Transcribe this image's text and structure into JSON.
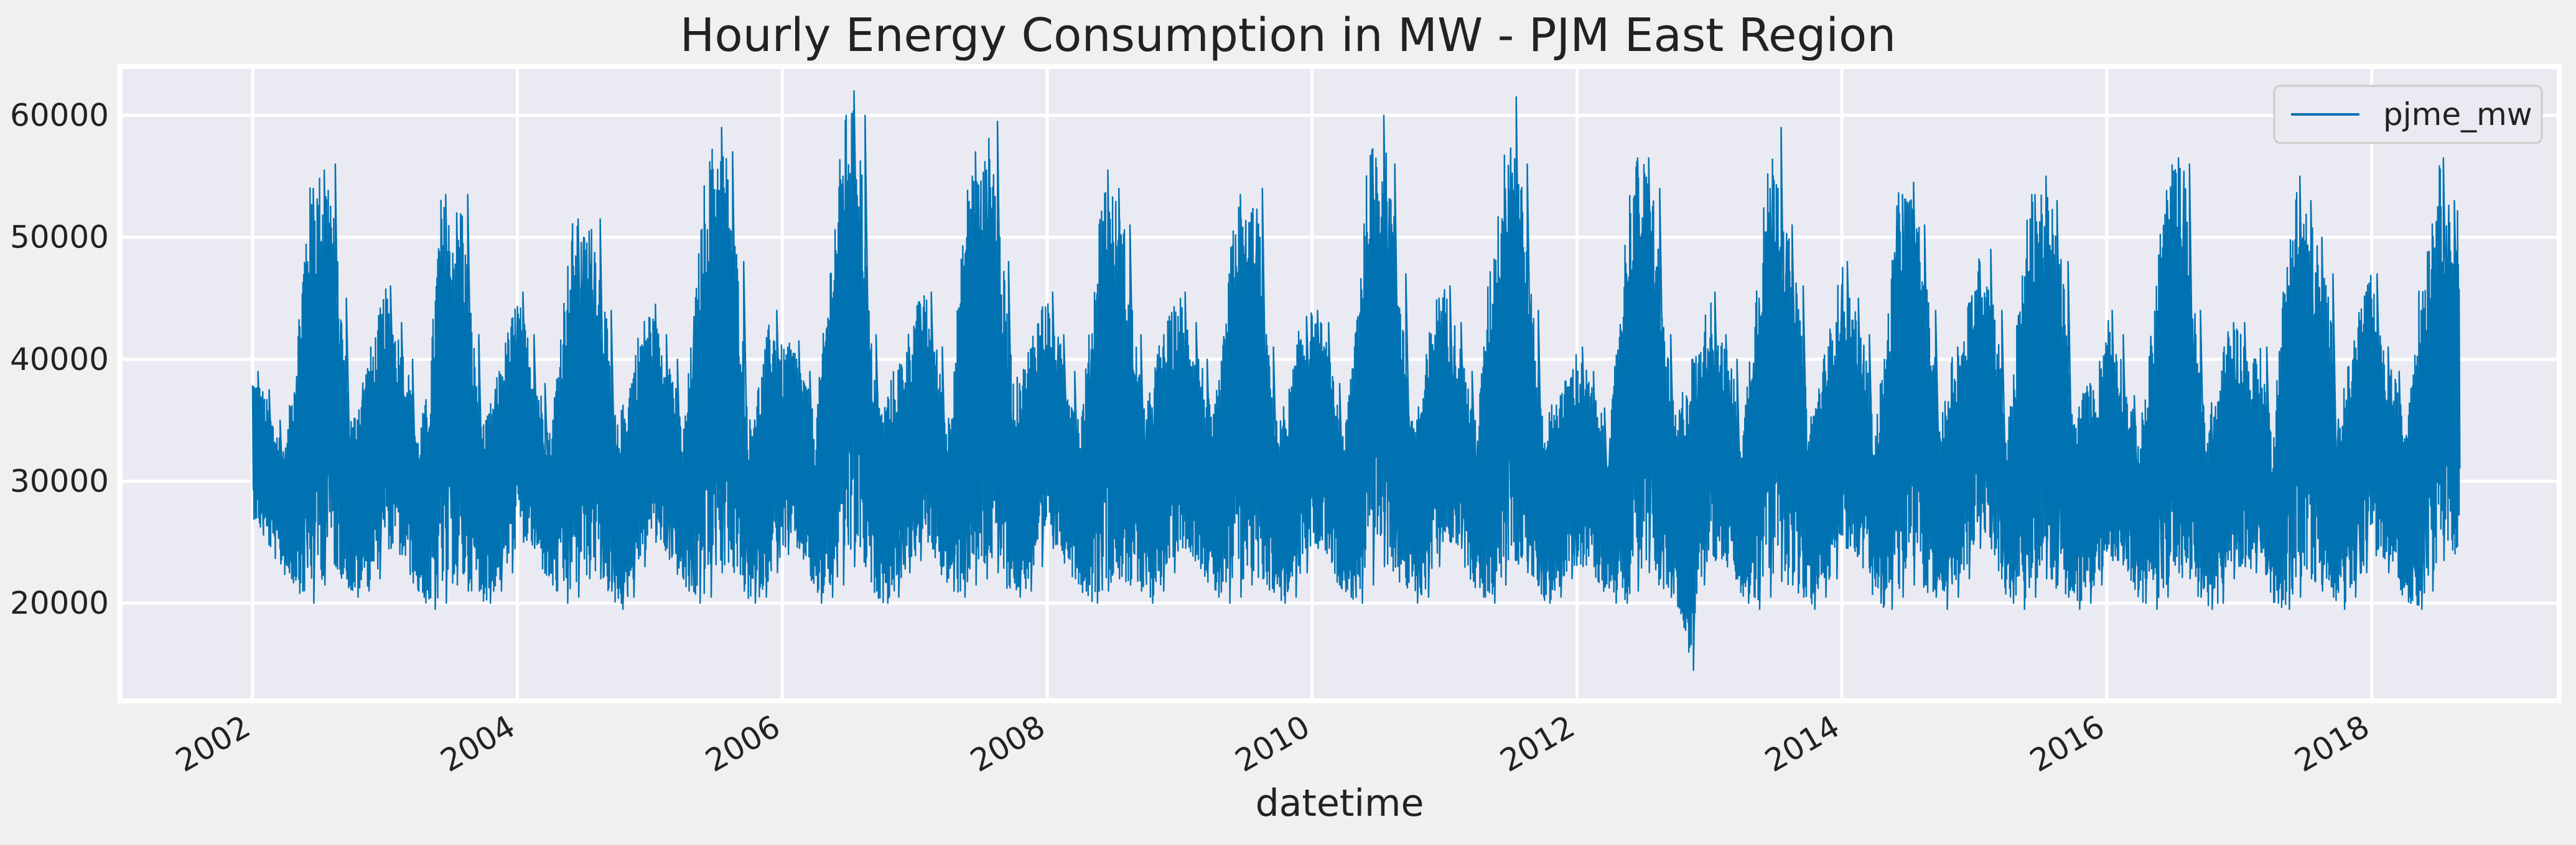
{
  "chart_data": {
    "type": "line",
    "title": "Hourly Energy Consumption in MW - PJM East Region",
    "xlabel": "datetime",
    "ylabel": "",
    "xlim": [
      "2001-01-01",
      "2019-06-01"
    ],
    "ylim": [
      12000,
      64000
    ],
    "x_ticks": [
      "2002",
      "2004",
      "2006",
      "2008",
      "2010",
      "2012",
      "2014",
      "2016",
      "2018"
    ],
    "y_ticks": [
      20000,
      30000,
      40000,
      50000,
      60000
    ],
    "grid": true,
    "legend_position": "top-right",
    "series_color": "#0072b2",
    "background_color": "#f0f0f0",
    "plot_background_color": "#eaeaf2",
    "series": [
      {
        "name": "pjme_mw",
        "x": [
          "2002-01",
          "2002-02",
          "2002-03",
          "2002-04",
          "2002-05",
          "2002-06",
          "2002-07",
          "2002-08",
          "2002-09",
          "2002-10",
          "2002-11",
          "2002-12",
          "2003-01",
          "2003-02",
          "2003-03",
          "2003-04",
          "2003-05",
          "2003-06",
          "2003-07",
          "2003-08",
          "2003-09",
          "2003-10",
          "2003-11",
          "2003-12",
          "2004-01",
          "2004-02",
          "2004-03",
          "2004-04",
          "2004-05",
          "2004-06",
          "2004-07",
          "2004-08",
          "2004-09",
          "2004-10",
          "2004-11",
          "2004-12",
          "2005-01",
          "2005-02",
          "2005-03",
          "2005-04",
          "2005-05",
          "2005-06",
          "2005-07",
          "2005-08",
          "2005-09",
          "2005-10",
          "2005-11",
          "2005-12",
          "2006-01",
          "2006-02",
          "2006-03",
          "2006-04",
          "2006-05",
          "2006-06",
          "2006-07",
          "2006-08",
          "2006-09",
          "2006-10",
          "2006-11",
          "2006-12",
          "2007-01",
          "2007-02",
          "2007-03",
          "2007-04",
          "2007-05",
          "2007-06",
          "2007-07",
          "2007-08",
          "2007-09",
          "2007-10",
          "2007-11",
          "2007-12",
          "2008-01",
          "2008-02",
          "2008-03",
          "2008-04",
          "2008-05",
          "2008-06",
          "2008-07",
          "2008-08",
          "2008-09",
          "2008-10",
          "2008-11",
          "2008-12",
          "2009-01",
          "2009-02",
          "2009-03",
          "2009-04",
          "2009-05",
          "2009-06",
          "2009-07",
          "2009-08",
          "2009-09",
          "2009-10",
          "2009-11",
          "2009-12",
          "2010-01",
          "2010-02",
          "2010-03",
          "2010-04",
          "2010-05",
          "2010-06",
          "2010-07",
          "2010-08",
          "2010-09",
          "2010-10",
          "2010-11",
          "2010-12",
          "2011-01",
          "2011-02",
          "2011-03",
          "2011-04",
          "2011-05",
          "2011-06",
          "2011-07",
          "2011-08",
          "2011-09",
          "2011-10",
          "2011-11",
          "2011-12",
          "2012-01",
          "2012-02",
          "2012-03",
          "2012-04",
          "2012-05",
          "2012-06",
          "2012-07",
          "2012-08",
          "2012-09",
          "2012-10",
          "2012-11",
          "2012-12",
          "2013-01",
          "2013-02",
          "2013-03",
          "2013-04",
          "2013-05",
          "2013-06",
          "2013-07",
          "2013-08",
          "2013-09",
          "2013-10",
          "2013-11",
          "2013-12",
          "2014-01",
          "2014-02",
          "2014-03",
          "2014-04",
          "2014-05",
          "2014-06",
          "2014-07",
          "2014-08",
          "2014-09",
          "2014-10",
          "2014-11",
          "2014-12",
          "2015-01",
          "2015-02",
          "2015-03",
          "2015-04",
          "2015-05",
          "2015-06",
          "2015-07",
          "2015-08",
          "2015-09",
          "2015-10",
          "2015-11",
          "2015-12",
          "2016-01",
          "2016-02",
          "2016-03",
          "2016-04",
          "2016-05",
          "2016-06",
          "2016-07",
          "2016-08",
          "2016-09",
          "2016-10",
          "2016-11",
          "2016-12",
          "2017-01",
          "2017-02",
          "2017-03",
          "2017-04",
          "2017-05",
          "2017-06",
          "2017-07",
          "2017-08",
          "2017-09",
          "2017-10",
          "2017-11",
          "2017-12",
          "2018-01",
          "2018-02",
          "2018-03",
          "2018-04",
          "2018-05",
          "2018-06",
          "2018-07",
          "2018-08"
        ],
        "high": [
          39000,
          37500,
          35000,
          33000,
          42000,
          54000,
          55500,
          56000,
          45000,
          35000,
          39000,
          42000,
          46000,
          43000,
          40000,
          34000,
          38000,
          53500,
          52000,
          53500,
          42000,
          34500,
          38000,
          42000,
          45500,
          42000,
          38000,
          34000,
          44000,
          51500,
          50500,
          51500,
          44000,
          34500,
          38000,
          42500,
          44500,
          42000,
          40000,
          34000,
          44000,
          55500,
          59000,
          57000,
          48000,
          35000,
          39000,
          44000,
          41000,
          41500,
          39000,
          35000,
          45000,
          55000,
          62000,
          60000,
          42000,
          36000,
          39000,
          41000,
          44500,
          45500,
          41000,
          35000,
          46000,
          57000,
          55500,
          59500,
          48000,
          38000,
          40000,
          44000,
          45500,
          42000,
          39000,
          35000,
          44000,
          55500,
          54000,
          51000,
          42000,
          36000,
          41000,
          43500,
          45500,
          43000,
          40000,
          35000,
          42000,
          53500,
          52000,
          54000,
          41000,
          35000,
          38000,
          43500,
          44000,
          43000,
          38000,
          34000,
          45000,
          56000,
          60000,
          56000,
          47000,
          35000,
          38000,
          45000,
          46000,
          43000,
          39000,
          35000,
          47000,
          54000,
          61500,
          56000,
          44000,
          35000,
          37000,
          38500,
          41000,
          39000,
          36000,
          34000,
          47000,
          56500,
          56500,
          54000,
          42000,
          35000,
          40000,
          41000,
          45500,
          42000,
          40000,
          34000,
          45000,
          54000,
          59000,
          51000,
          46000,
          35000,
          39000,
          43000,
          48000,
          45000,
          42000,
          34500,
          42000,
          53500,
          54500,
          51000,
          44000,
          35000,
          41000,
          42000,
          48000,
          49000,
          44000,
          34000,
          44500,
          53500,
          55000,
          53000,
          48000,
          35000,
          38000,
          38000,
          44000,
          42000,
          37000,
          34000,
          42000,
          53000,
          56500,
          56000,
          44000,
          35000,
          38000,
          43000,
          43000,
          40000,
          41000,
          34000,
          46000,
          55000,
          53000,
          50000,
          47000,
          36000,
          40000,
          45500,
          47000,
          41000,
          39000,
          35000,
          44000,
          50000,
          56500,
          53000
        ],
        "low": [
          27000,
          25000,
          23500,
          22000,
          21000,
          20000,
          21500,
          23000,
          22000,
          20500,
          21000,
          22000,
          24500,
          24000,
          22500,
          20500,
          19500,
          20000,
          21500,
          21000,
          21000,
          20000,
          21000,
          22500,
          25000,
          24500,
          23000,
          21000,
          20000,
          20500,
          22000,
          22000,
          21000,
          19500,
          20500,
          23000,
          25000,
          24500,
          23000,
          21000,
          20000,
          20500,
          22500,
          23000,
          21000,
          20000,
          20500,
          22500,
          24000,
          24500,
          23000,
          20000,
          20500,
          21500,
          23000,
          23000,
          21000,
          20000,
          20500,
          22500,
          23500,
          25000,
          23000,
          21000,
          20500,
          21500,
          22000,
          22500,
          21500,
          20500,
          21000,
          23000,
          24500,
          24000,
          22500,
          21000,
          20000,
          21000,
          22000,
          21500,
          21000,
          20000,
          21000,
          22500,
          24500,
          24000,
          22500,
          20500,
          20000,
          20500,
          21500,
          22000,
          21000,
          20000,
          20500,
          22500,
          24500,
          24500,
          22000,
          20500,
          20000,
          21500,
          23000,
          23000,
          21500,
          20000,
          20500,
          23000,
          25000,
          24500,
          22500,
          20500,
          20000,
          21500,
          23500,
          22500,
          21500,
          20000,
          20500,
          22000,
          23000,
          23000,
          21500,
          20000,
          20000,
          21000,
          22500,
          22000,
          20500,
          19500,
          14500,
          21500,
          23500,
          23500,
          22000,
          20000,
          19500,
          20500,
          22000,
          21500,
          20500,
          19500,
          20500,
          22000,
          24500,
          24000,
          22500,
          20000,
          19500,
          20500,
          21500,
          21500,
          20500,
          19500,
          20500,
          22000,
          24500,
          25000,
          23000,
          20000,
          19500,
          20500,
          22000,
          21500,
          20500,
          19500,
          20000,
          21500,
          23500,
          23500,
          22000,
          20000,
          19500,
          20500,
          22500,
          22000,
          20500,
          19500,
          20000,
          22000,
          23000,
          22500,
          22500,
          20000,
          19500,
          20500,
          22000,
          21000,
          20500,
          19500,
          20500,
          22500,
          24500,
          22500,
          22000,
          20000,
          19500,
          21000,
          23500,
          24000
        ]
      }
    ]
  }
}
